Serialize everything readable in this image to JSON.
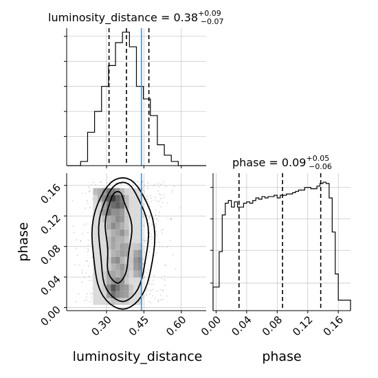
{
  "chart_data": {
    "type": "corner",
    "parameters": [
      "luminosity_distance",
      "phase"
    ],
    "truth": {
      "luminosity_distance": 0.44,
      "color": "#4a90c8"
    },
    "panels": {
      "luminosity_distance_hist": {
        "type": "histogram",
        "title": "luminosity_distance = 0.38",
        "title_value": "0.38",
        "title_sup": "+0.09",
        "title_sub": "−0.07",
        "bin_edges": [
          0.14,
          0.168,
          0.196,
          0.224,
          0.252,
          0.28,
          0.308,
          0.336,
          0.364,
          0.392,
          0.42,
          0.448,
          0.476,
          0.504,
          0.532,
          0.56,
          0.588,
          0.616,
          0.644,
          0.672,
          0.7
        ],
        "counts": [
          0,
          0,
          2,
          16,
          26,
          38,
          48,
          59,
          64,
          57,
          38,
          32,
          24,
          10,
          5,
          2,
          0,
          0,
          0,
          0
        ],
        "quantiles": [
          0.31,
          0.38,
          0.47
        ],
        "xlim": [
          0.14,
          0.7
        ]
      },
      "phase_hist": {
        "type": "histogram",
        "title": "phase = 0.09",
        "title_value": "0.09",
        "title_sup": "+0.05",
        "title_sub": "−0.06",
        "bin_edges": [
          -0.004,
          0.0,
          0.004,
          0.008,
          0.012,
          0.016,
          0.02,
          0.024,
          0.028,
          0.032,
          0.036,
          0.04,
          0.044,
          0.048,
          0.052,
          0.056,
          0.06,
          0.064,
          0.068,
          0.072,
          0.076,
          0.08,
          0.084,
          0.088,
          0.092,
          0.096,
          0.1,
          0.104,
          0.108,
          0.112,
          0.116,
          0.12,
          0.124,
          0.128,
          0.132,
          0.136,
          0.14,
          0.144,
          0.148,
          0.152,
          0.156,
          0.16,
          0.164,
          0.168,
          0.172,
          0.176
        ],
        "counts": [
          18,
          18,
          45,
          73,
          82,
          84,
          79,
          83,
          79,
          79,
          82,
          83,
          82,
          84,
          86,
          85,
          87,
          86,
          87,
          87,
          88,
          86,
          88,
          88,
          89,
          89,
          90,
          91,
          92,
          92,
          94,
          94,
          93,
          93,
          95,
          97,
          98,
          97,
          86,
          60,
          28,
          8,
          8,
          8,
          8
        ],
        "quantiles": [
          0.03,
          0.087,
          0.137
        ],
        "xlim": [
          -0.004,
          0.176
        ]
      },
      "joint": {
        "type": "2d-density",
        "xlabel": "luminosity_distance",
        "ylabel": "phase",
        "xlim": [
          0.14,
          0.7
        ],
        "ylim": [
          -0.004,
          0.176
        ],
        "x_ticks": [
          0.3,
          0.45,
          0.6
        ],
        "x_ticklabels": [
          "0.30",
          "0.45",
          "0.60"
        ],
        "y_ticks": [
          0.0,
          0.04,
          0.08,
          0.12,
          0.16
        ],
        "y_ticklabels": [
          "0.00",
          "0.04",
          "0.08",
          "0.12",
          "0.16"
        ],
        "density_core": [
          {
            "x": 0.26,
            "y": 0.155,
            "level": 0.3
          },
          {
            "x": 0.29,
            "y": 0.148,
            "level": 0.5
          },
          {
            "x": 0.31,
            "y": 0.145,
            "level": 0.8
          },
          {
            "x": 0.33,
            "y": 0.142,
            "level": 0.95
          },
          {
            "x": 0.35,
            "y": 0.138,
            "level": 0.85
          },
          {
            "x": 0.31,
            "y": 0.128,
            "level": 0.7
          },
          {
            "x": 0.35,
            "y": 0.12,
            "level": 0.6
          },
          {
            "x": 0.33,
            "y": 0.108,
            "level": 0.55
          },
          {
            "x": 0.36,
            "y": 0.098,
            "level": 0.5
          },
          {
            "x": 0.33,
            "y": 0.085,
            "level": 0.45
          },
          {
            "x": 0.37,
            "y": 0.075,
            "level": 0.5
          },
          {
            "x": 0.34,
            "y": 0.062,
            "level": 0.55
          },
          {
            "x": 0.36,
            "y": 0.05,
            "level": 0.5
          },
          {
            "x": 0.32,
            "y": 0.04,
            "level": 0.45
          },
          {
            "x": 0.35,
            "y": 0.032,
            "level": 0.6
          },
          {
            "x": 0.33,
            "y": 0.024,
            "level": 0.85
          },
          {
            "x": 0.37,
            "y": 0.022,
            "level": 0.55
          },
          {
            "x": 0.43,
            "y": 0.07,
            "level": 0.4
          },
          {
            "x": 0.43,
            "y": 0.052,
            "level": 0.55
          },
          {
            "x": 0.43,
            "y": 0.064,
            "level": 0.6
          }
        ]
      },
      "phase_hist_axis": {
        "xlabel": "phase",
        "x_ticks": [
          0.0,
          0.04,
          0.08,
          0.12,
          0.16
        ],
        "x_ticklabels": [
          "0.00",
          "0.04",
          "0.08",
          "0.12",
          "0.16"
        ]
      }
    },
    "grid": true
  }
}
